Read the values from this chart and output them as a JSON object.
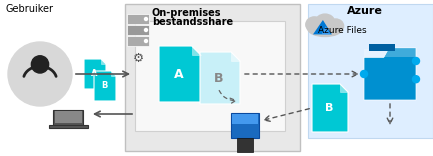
{
  "bg_color": "#ffffff",
  "onprem_box_color": "#e8e8e8",
  "onprem_inner_box_color": "#f5f5f5",
  "azure_box_color": "#deeeff",
  "cyan_dark": "#00c8d4",
  "cyan_light": "#c8f0f8",
  "blue_folder": "#0090d0",
  "blue_device": "#1060c0",
  "arrow_color": "#555555",
  "dotted_color": "#666666",
  "text_color": "#000000",
  "title_onprem_line1": "On-premises",
  "title_onprem_line2": "bestandsshare",
  "title_azure": "Azure",
  "title_azure_files": "Azure Files",
  "label_gebruiker": "Gebruiker",
  "figsize": [
    4.33,
    1.56
  ],
  "dpi": 100
}
